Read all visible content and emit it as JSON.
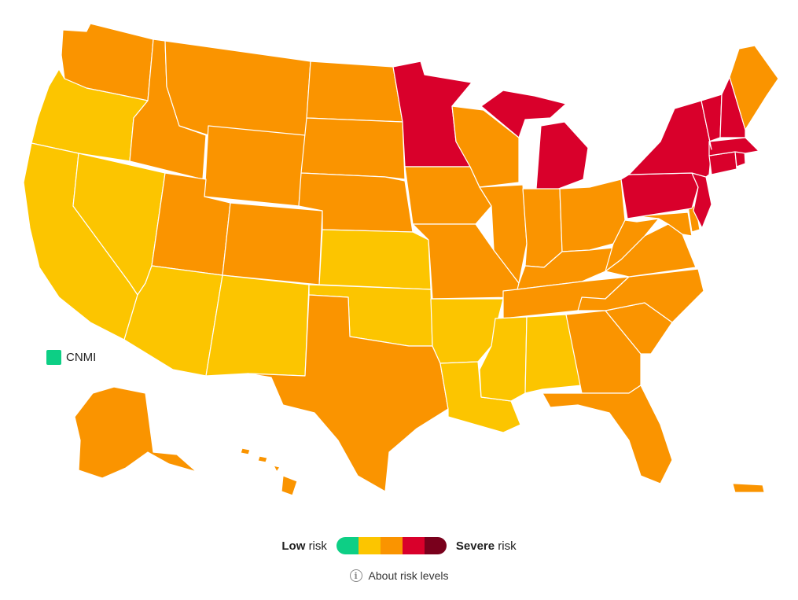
{
  "colors": {
    "low": "#0dcf85",
    "moderate": "#fcc500",
    "high": "#fa9400",
    "very_high": "#d9002b",
    "severe": "#79001c"
  },
  "regions": [
    {
      "id": "WA",
      "level": "high"
    },
    {
      "id": "OR",
      "level": "moderate"
    },
    {
      "id": "CA",
      "level": "moderate"
    },
    {
      "id": "ID",
      "level": "high"
    },
    {
      "id": "NV",
      "level": "moderate"
    },
    {
      "id": "MT",
      "level": "high"
    },
    {
      "id": "WY",
      "level": "high"
    },
    {
      "id": "UT",
      "level": "high"
    },
    {
      "id": "AZ",
      "level": "moderate"
    },
    {
      "id": "CO",
      "level": "high"
    },
    {
      "id": "NM",
      "level": "moderate"
    },
    {
      "id": "ND",
      "level": "high"
    },
    {
      "id": "SD",
      "level": "high"
    },
    {
      "id": "NE",
      "level": "high"
    },
    {
      "id": "KS",
      "level": "moderate"
    },
    {
      "id": "OK",
      "level": "moderate"
    },
    {
      "id": "TX",
      "level": "high"
    },
    {
      "id": "MN",
      "level": "very_high"
    },
    {
      "id": "IA",
      "level": "high"
    },
    {
      "id": "MO",
      "level": "high"
    },
    {
      "id": "AR",
      "level": "moderate"
    },
    {
      "id": "LA",
      "level": "moderate"
    },
    {
      "id": "WI",
      "level": "high"
    },
    {
      "id": "IL",
      "level": "high"
    },
    {
      "id": "MI",
      "level": "very_high"
    },
    {
      "id": "IN",
      "level": "high"
    },
    {
      "id": "OH",
      "level": "high"
    },
    {
      "id": "KY",
      "level": "high"
    },
    {
      "id": "TN",
      "level": "high"
    },
    {
      "id": "MS",
      "level": "moderate"
    },
    {
      "id": "AL",
      "level": "moderate"
    },
    {
      "id": "GA",
      "level": "high"
    },
    {
      "id": "FL",
      "level": "high"
    },
    {
      "id": "SC",
      "level": "high"
    },
    {
      "id": "NC",
      "level": "high"
    },
    {
      "id": "VA",
      "level": "high"
    },
    {
      "id": "WV",
      "level": "high"
    },
    {
      "id": "MD",
      "level": "high"
    },
    {
      "id": "DE",
      "level": "high"
    },
    {
      "id": "PA",
      "level": "very_high"
    },
    {
      "id": "NJ",
      "level": "very_high"
    },
    {
      "id": "NY",
      "level": "very_high"
    },
    {
      "id": "CT",
      "level": "very_high"
    },
    {
      "id": "RI",
      "level": "very_high"
    },
    {
      "id": "MA",
      "level": "very_high"
    },
    {
      "id": "VT",
      "level": "very_high"
    },
    {
      "id": "NH",
      "level": "very_high"
    },
    {
      "id": "ME",
      "level": "high"
    },
    {
      "id": "AK",
      "level": "high"
    },
    {
      "id": "HI",
      "level": "high"
    },
    {
      "id": "PR",
      "level": "high"
    },
    {
      "id": "CNMI",
      "level": "low"
    }
  ],
  "cnmi_label": "CNMI",
  "legend": {
    "low_bold": "Low",
    "low_rest": "risk",
    "severe_bold": "Severe",
    "severe_rest": "risk",
    "scale": [
      "low",
      "moderate",
      "high",
      "very_high",
      "severe"
    ]
  },
  "about": {
    "icon": "info-icon",
    "label": "About risk levels"
  }
}
